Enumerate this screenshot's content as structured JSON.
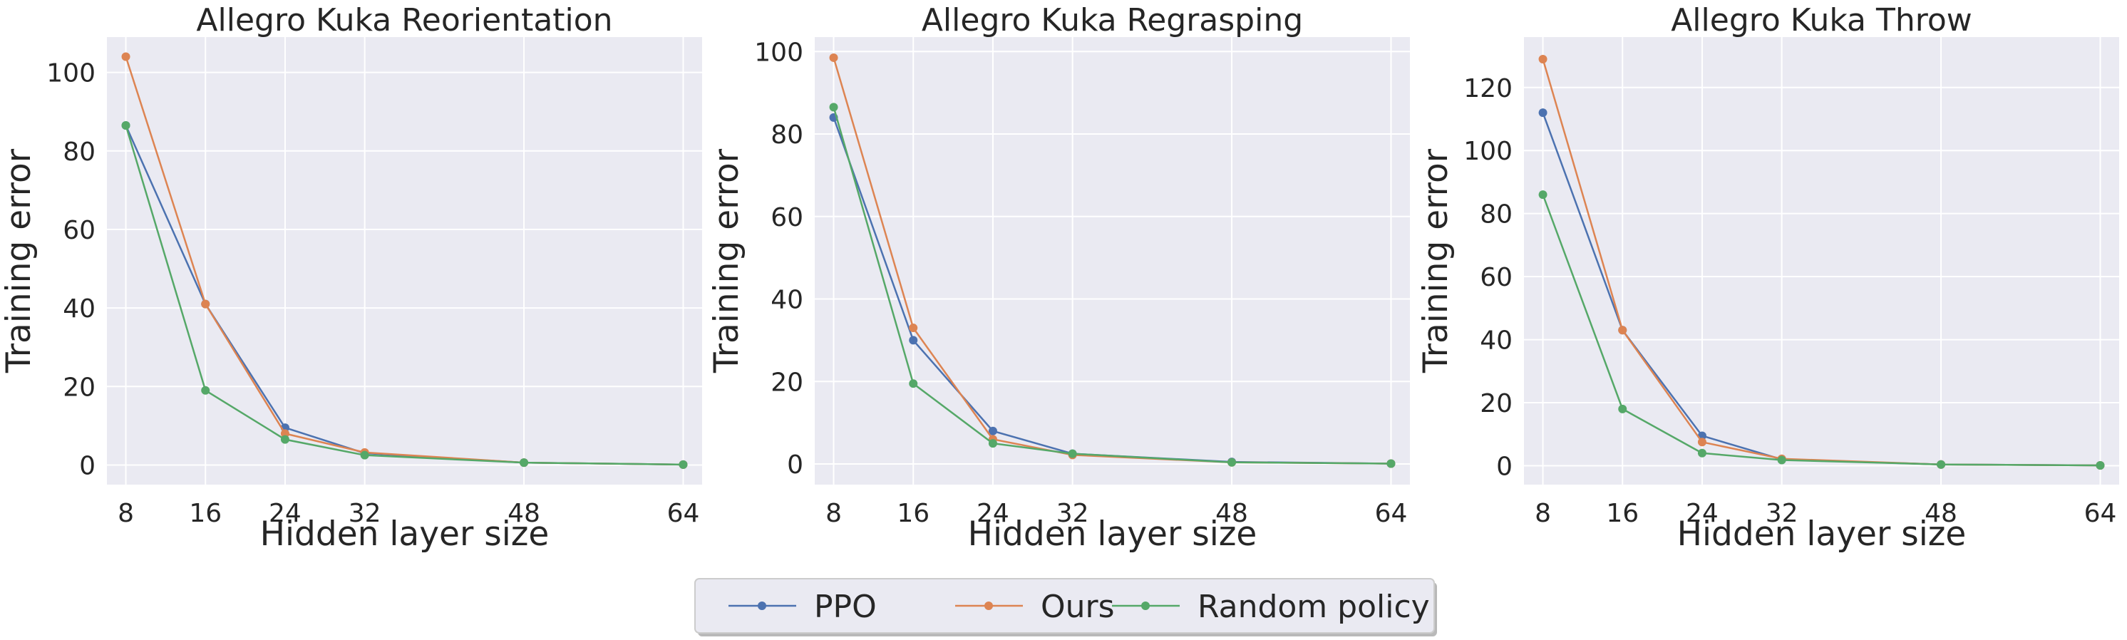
{
  "chart_data": [
    {
      "type": "line",
      "title": "Allegro Kuka Reorientation",
      "xlabel": "Hidden layer size",
      "ylabel": "Training error",
      "x": [
        8,
        16,
        24,
        32,
        48,
        64
      ],
      "xticks": [
        8,
        16,
        24,
        32,
        48,
        64
      ],
      "yticks": [
        0,
        20,
        40,
        60,
        80,
        100
      ],
      "xlim": [
        6.1,
        65.9
      ],
      "ylim": [
        -5,
        109
      ],
      "grid": true,
      "series": [
        {
          "name": "PPO",
          "color": "#4c72b0",
          "values": [
            86.5,
            41.0,
            9.5,
            3.0,
            0.6,
            0.1
          ]
        },
        {
          "name": "Ours",
          "color": "#dd8452",
          "values": [
            104.0,
            41.0,
            8.0,
            3.2,
            0.6,
            0.1
          ]
        },
        {
          "name": "Random policy",
          "color": "#55a868",
          "values": [
            86.5,
            19.0,
            6.5,
            2.5,
            0.6,
            0.1
          ]
        }
      ]
    },
    {
      "type": "line",
      "title": "Allegro Kuka Regrasping",
      "xlabel": "Hidden layer size",
      "ylabel": "Training error",
      "x": [
        8,
        16,
        24,
        32,
        48,
        64
      ],
      "xticks": [
        8,
        16,
        24,
        32,
        48,
        64
      ],
      "yticks": [
        0,
        20,
        40,
        60,
        80,
        100
      ],
      "xlim": [
        6.1,
        65.9
      ],
      "ylim": [
        -5,
        103.5
      ],
      "grid": true,
      "series": [
        {
          "name": "PPO",
          "color": "#4c72b0",
          "values": [
            84.0,
            30.0,
            8.0,
            2.5,
            0.5,
            0.1
          ]
        },
        {
          "name": "Ours",
          "color": "#dd8452",
          "values": [
            98.5,
            33.0,
            6.0,
            2.2,
            0.4,
            0.1
          ]
        },
        {
          "name": "Random policy",
          "color": "#55a868",
          "values": [
            86.5,
            19.5,
            5.0,
            2.5,
            0.4,
            0.1
          ]
        }
      ]
    },
    {
      "type": "line",
      "title": "Allegro Kuka Throw",
      "xlabel": "Hidden layer size",
      "ylabel": "Training error",
      "x": [
        8,
        16,
        24,
        32,
        48,
        64
      ],
      "xticks": [
        8,
        16,
        24,
        32,
        48,
        64
      ],
      "yticks": [
        0,
        20,
        40,
        60,
        80,
        100,
        120
      ],
      "xlim": [
        6.1,
        65.9
      ],
      "ylim": [
        -6,
        136
      ],
      "grid": true,
      "series": [
        {
          "name": "PPO",
          "color": "#4c72b0",
          "values": [
            112.0,
            43.0,
            9.5,
            2.0,
            0.4,
            0.1
          ]
        },
        {
          "name": "Ours",
          "color": "#dd8452",
          "values": [
            129.0,
            43.0,
            7.5,
            2.2,
            0.4,
            0.1
          ]
        },
        {
          "name": "Random policy",
          "color": "#55a868",
          "values": [
            86.0,
            18.0,
            4.0,
            1.8,
            0.4,
            0.1
          ]
        }
      ]
    }
  ],
  "legend": {
    "placement": "bottom-center",
    "entries": [
      {
        "label": "PPO",
        "color": "#4c72b0"
      },
      {
        "label": "Ours",
        "color": "#dd8452"
      },
      {
        "label": "Random policy",
        "color": "#55a868"
      }
    ]
  }
}
